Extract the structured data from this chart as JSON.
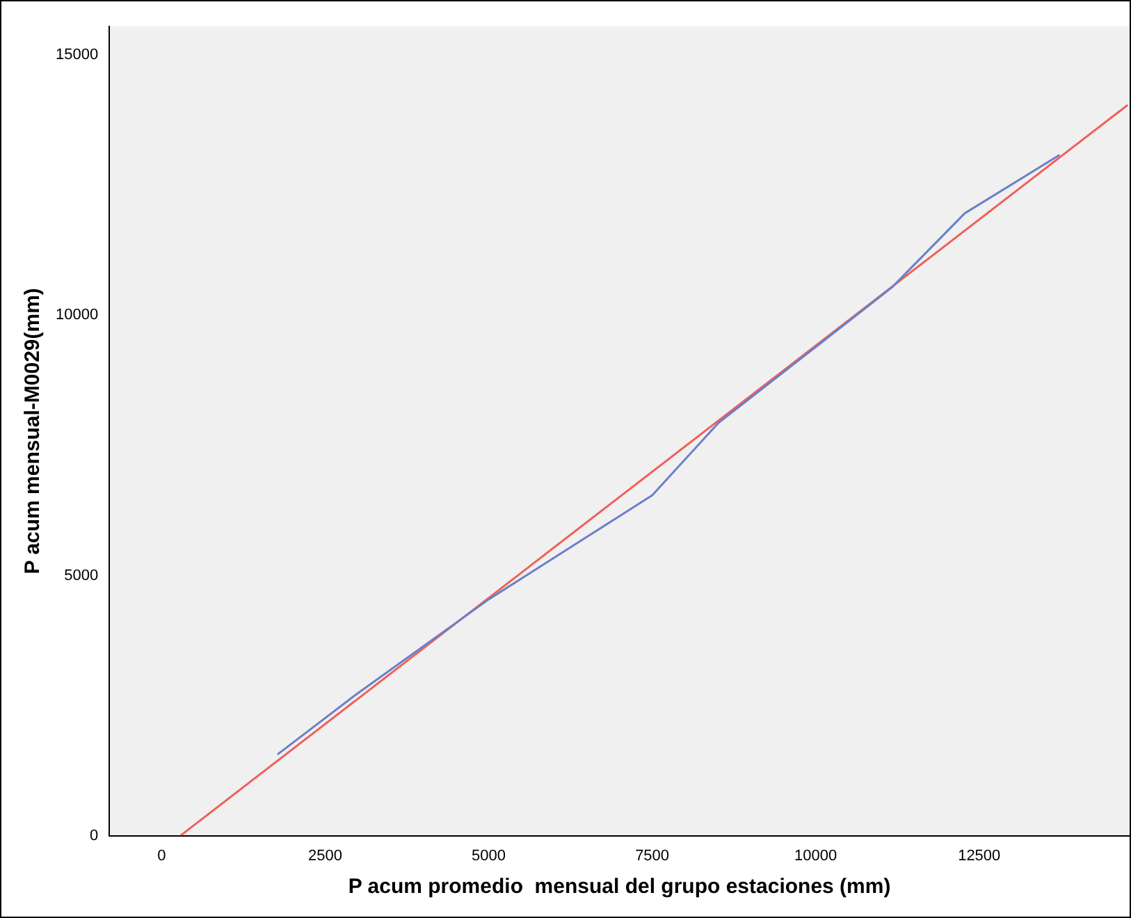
{
  "chart_data": {
    "type": "line",
    "xlabel": "P acum promedio  mensual del grupo estaciones (mm)",
    "ylabel": "P acum mensual-M0029(mm)",
    "xlim": [
      -800,
      14800
    ],
    "xticks": [
      0,
      2500,
      5000,
      7500,
      10000,
      12500
    ],
    "ylim": [
      0,
      15550
    ],
    "yticks": [
      0,
      5000,
      10000,
      15000
    ],
    "grid": false,
    "legend": false,
    "marker": "none",
    "series": [
      {
        "color": "#6b7fc9",
        "x": [
          1770,
          2960,
          5000,
          7500,
          8520,
          10000,
          11170,
          12280,
          13730
        ],
        "values": [
          1560,
          2700,
          4540,
          6540,
          7940,
          9390,
          10540,
          11960,
          13080
        ]
      },
      {
        "color": "#f0605a",
        "x": [
          287,
          14770
        ],
        "values": [
          0,
          14040
        ]
      }
    ]
  }
}
